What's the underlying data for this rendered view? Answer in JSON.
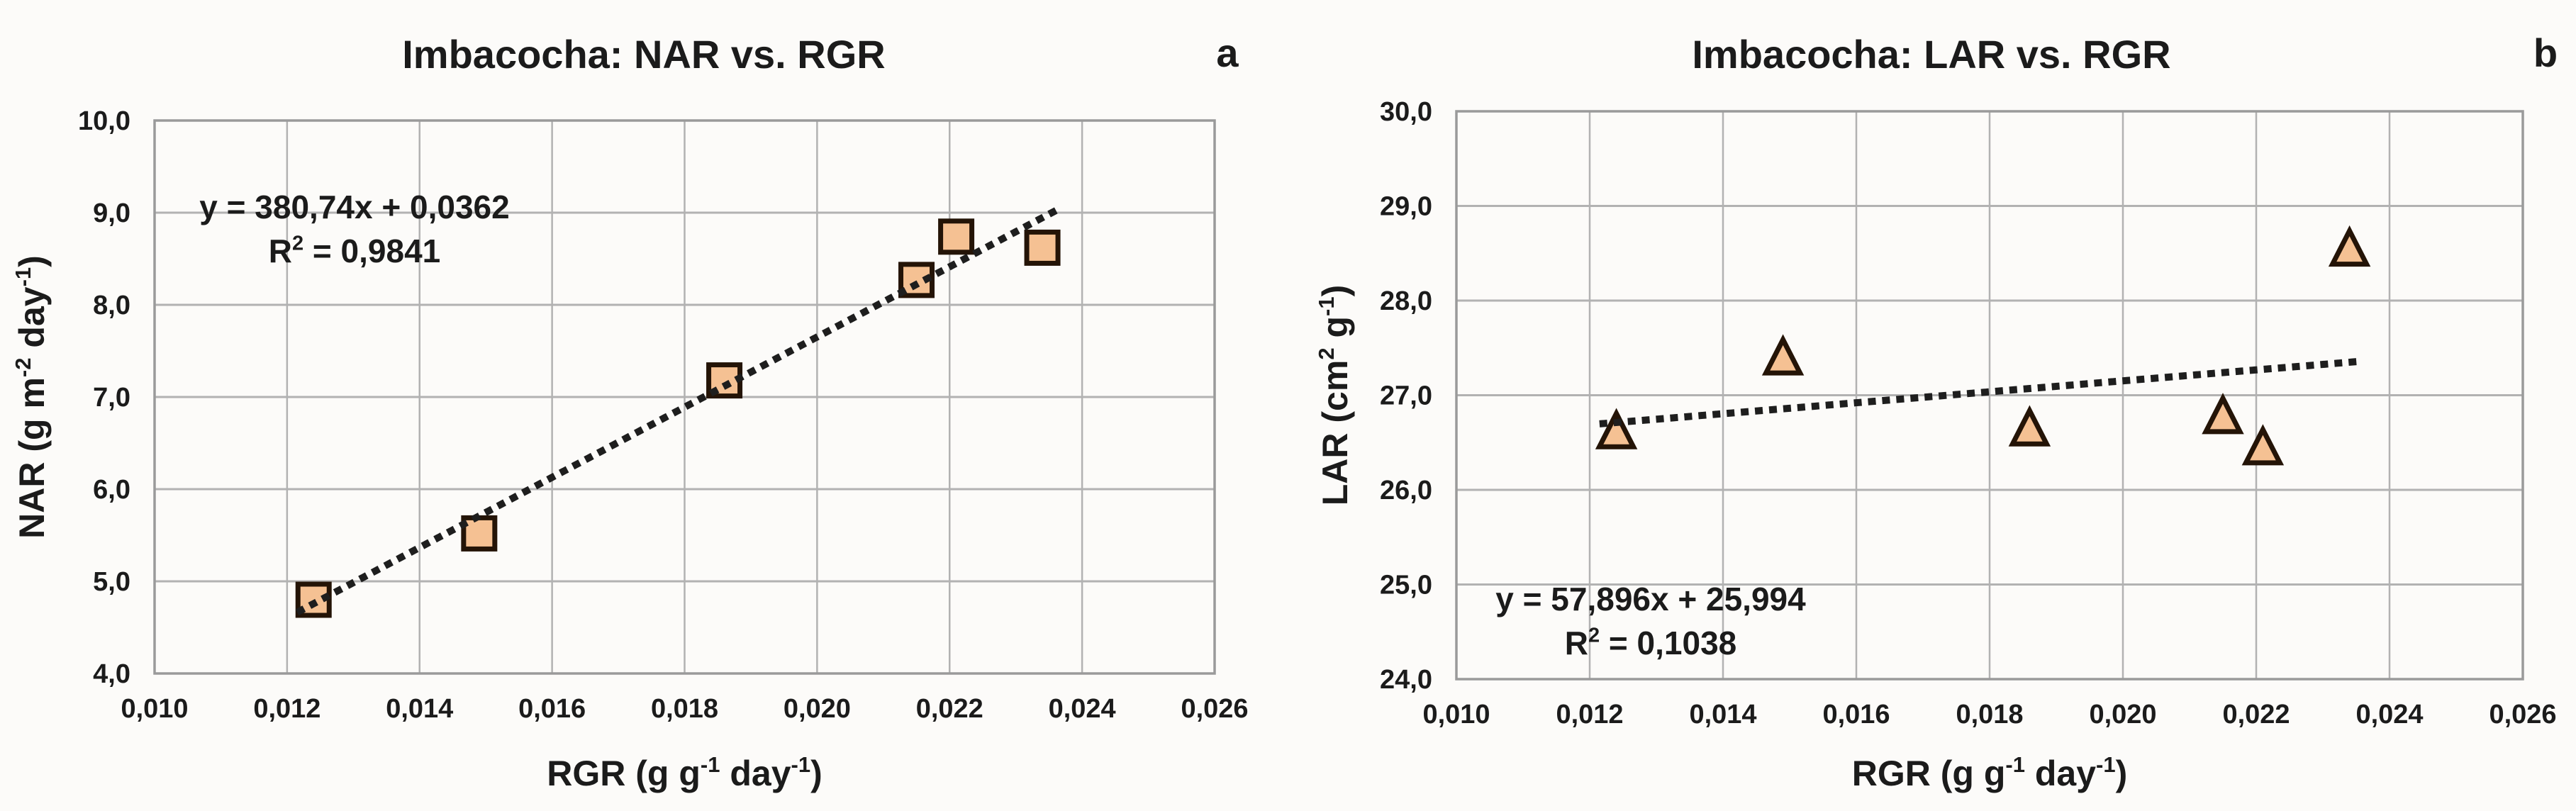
{
  "figure": {
    "background": "#fcfbf9",
    "text_color": "#1b1b1b",
    "grid_color": "#b2b2b2",
    "border_color": "#9a9a9a",
    "trend_color": "#1e1e1e"
  },
  "chart_data": [
    {
      "type": "scatter",
      "title": "Imbacocha: NAR vs. RGR",
      "panel_label": "a",
      "xlabel_parts": [
        {
          "t": "RGR (g  g"
        },
        {
          "t": "-1",
          "sup": true
        },
        {
          "t": " day"
        },
        {
          "t": "-1",
          "sup": true
        },
        {
          "t": ")"
        }
      ],
      "ylabel_parts": [
        {
          "t": "NAR (g m"
        },
        {
          "t": "-2",
          "sup": true
        },
        {
          "t": " day"
        },
        {
          "t": "-1",
          "sup": true
        },
        {
          "t": ")"
        }
      ],
      "xlim": [
        0.01,
        0.026
      ],
      "ylim": [
        4.0,
        10.0
      ],
      "x_tick_labels": [
        "0,010",
        "0,012",
        "0,014",
        "0,016",
        "0,018",
        "0,020",
        "0,022",
        "0,024",
        "0,026"
      ],
      "y_tick_labels": [
        "10,0",
        "9,0",
        "8,0",
        "7,0",
        "6,0",
        "5,0",
        "4,0"
      ],
      "grid": true,
      "legend": "none",
      "marker": "square",
      "marker_fill": "#f5c193",
      "marker_stroke": "#241407",
      "points": [
        {
          "x": 0.0124,
          "y": 4.8
        },
        {
          "x": 0.0149,
          "y": 5.52
        },
        {
          "x": 0.0186,
          "y": 7.18
        },
        {
          "x": 0.0215,
          "y": 8.27
        },
        {
          "x": 0.0221,
          "y": 8.74
        },
        {
          "x": 0.0234,
          "y": 8.62
        }
      ],
      "trend": {
        "equation": "y = 380,74x + 0,0362",
        "r2_parts": [
          {
            "t": "R"
          },
          {
            "t": "2",
            "sup": true
          },
          {
            "t": " = 0,9841"
          }
        ],
        "slope": 380.74,
        "intercept": 0.0362,
        "x_start": 0.0122,
        "x_end": 0.0236,
        "style": "dotted"
      }
    },
    {
      "type": "scatter",
      "title": "Imbacocha: LAR vs. RGR",
      "panel_label": "b",
      "xlabel_parts": [
        {
          "t": "RGR (g  g"
        },
        {
          "t": "-1",
          "sup": true
        },
        {
          "t": " day"
        },
        {
          "t": "-1",
          "sup": true
        },
        {
          "t": ")"
        }
      ],
      "ylabel_parts": [
        {
          "t": "LAR (cm"
        },
        {
          "t": "2",
          "sup": true
        },
        {
          "t": " g"
        },
        {
          "t": "-1",
          "sup": true
        },
        {
          "t": ")"
        }
      ],
      "xlim": [
        0.01,
        0.026
      ],
      "ylim": [
        24.0,
        30.0
      ],
      "x_tick_labels": [
        "0,010",
        "0,012",
        "0,014",
        "0,016",
        "0,018",
        "0,020",
        "0,022",
        "0,024",
        "0,026"
      ],
      "y_tick_labels": [
        "30,0",
        "29,0",
        "28,0",
        "27,0",
        "26,0",
        "25,0",
        "24,0"
      ],
      "grid": true,
      "legend": "none",
      "marker": "triangle",
      "marker_fill": "#f5c193",
      "marker_stroke": "#241407",
      "points": [
        {
          "x": 0.0124,
          "y": 26.62
        },
        {
          "x": 0.0149,
          "y": 27.4
        },
        {
          "x": 0.0186,
          "y": 26.65
        },
        {
          "x": 0.0215,
          "y": 26.78
        },
        {
          "x": 0.0221,
          "y": 26.45
        },
        {
          "x": 0.0234,
          "y": 28.55
        }
      ],
      "trend": {
        "equation": "y = 57,896x + 25,994",
        "r2_parts": [
          {
            "t": "R"
          },
          {
            "t": "2",
            "sup": true
          },
          {
            "t": " = 0,1038"
          }
        ],
        "slope": 57.896,
        "intercept": 25.994,
        "x_start": 0.0122,
        "x_end": 0.0236,
        "style": "dotted"
      }
    }
  ]
}
